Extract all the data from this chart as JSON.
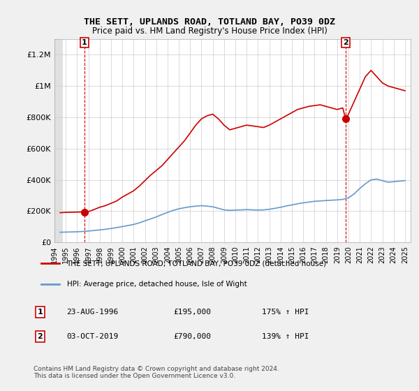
{
  "title": "THE SETT, UPLANDS ROAD, TOTLAND BAY, PO39 0DZ",
  "subtitle": "Price paid vs. HM Land Registry's House Price Index (HPI)",
  "xlabel": "",
  "ylabel": "",
  "ylim": [
    0,
    1300000
  ],
  "xlim_start": 1994.0,
  "xlim_end": 2025.5,
  "yticks": [
    0,
    200000,
    400000,
    600000,
    800000,
    1000000,
    1200000
  ],
  "ytick_labels": [
    "£0",
    "£200K",
    "£400K",
    "£600K",
    "£800K",
    "£1M",
    "£1.2M"
  ],
  "xticks": [
    1994,
    1995,
    1996,
    1997,
    1998,
    1999,
    2000,
    2001,
    2002,
    2003,
    2004,
    2005,
    2006,
    2007,
    2008,
    2009,
    2010,
    2011,
    2012,
    2013,
    2014,
    2015,
    2016,
    2017,
    2018,
    2019,
    2020,
    2021,
    2022,
    2023,
    2024,
    2025
  ],
  "hatch_end": 1994.75,
  "point1_x": 1996.645,
  "point1_y": 195000,
  "point1_label": "1",
  "point1_date": "23-AUG-1996",
  "point1_price": "£195,000",
  "point1_hpi": "175% ↑ HPI",
  "point2_x": 2019.75,
  "point2_y": 790000,
  "point2_label": "2",
  "point2_date": "03-OCT-2019",
  "point2_price": "£790,000",
  "point2_hpi": "139% ↑ HPI",
  "red_line_color": "#cc0000",
  "blue_line_color": "#6699cc",
  "background_color": "#f0f0f0",
  "plot_bg_color": "#ffffff",
  "hatch_color": "#cccccc",
  "grid_color": "#cccccc",
  "legend_line1": "THE SETT, UPLANDS ROAD, TOTLAND BAY, PO39 0DZ (detached house)",
  "legend_line2": "HPI: Average price, detached house, Isle of Wight",
  "footer": "Contains HM Land Registry data © Crown copyright and database right 2024.\nThis data is licensed under the Open Government Licence v3.0.",
  "red_x": [
    1994.5,
    1995.0,
    1995.5,
    1996.0,
    1996.645,
    1997.0,
    1997.5,
    1998.0,
    1998.5,
    1999.0,
    1999.5,
    2000.0,
    2000.5,
    2001.0,
    2001.5,
    2002.0,
    2002.5,
    2003.0,
    2003.5,
    2004.0,
    2004.5,
    2005.0,
    2005.5,
    2006.0,
    2006.5,
    2007.0,
    2007.5,
    2008.0,
    2008.5,
    2009.0,
    2009.5,
    2010.0,
    2010.5,
    2011.0,
    2011.5,
    2012.0,
    2012.5,
    2013.0,
    2013.5,
    2014.0,
    2014.5,
    2015.0,
    2015.5,
    2016.0,
    2016.5,
    2017.0,
    2017.5,
    2018.0,
    2018.5,
    2019.0,
    2019.5,
    2019.75,
    2020.0,
    2020.5,
    2021.0,
    2021.5,
    2022.0,
    2022.5,
    2023.0,
    2023.5,
    2024.0,
    2024.5,
    2025.0
  ],
  "red_y": [
    190000,
    192000,
    193000,
    194000,
    195000,
    197000,
    210000,
    225000,
    235000,
    250000,
    265000,
    290000,
    310000,
    330000,
    360000,
    395000,
    430000,
    460000,
    490000,
    530000,
    570000,
    610000,
    650000,
    700000,
    750000,
    790000,
    810000,
    820000,
    790000,
    750000,
    720000,
    730000,
    740000,
    750000,
    745000,
    740000,
    735000,
    750000,
    770000,
    790000,
    810000,
    830000,
    850000,
    860000,
    870000,
    875000,
    880000,
    870000,
    860000,
    850000,
    860000,
    790000,
    820000,
    900000,
    980000,
    1060000,
    1100000,
    1060000,
    1020000,
    1000000,
    990000,
    980000,
    970000
  ],
  "blue_x": [
    1994.5,
    1995.0,
    1995.5,
    1996.0,
    1996.5,
    1997.0,
    1997.5,
    1998.0,
    1998.5,
    1999.0,
    1999.5,
    2000.0,
    2000.5,
    2001.0,
    2001.5,
    2002.0,
    2002.5,
    2003.0,
    2003.5,
    2004.0,
    2004.5,
    2005.0,
    2005.5,
    2006.0,
    2006.5,
    2007.0,
    2007.5,
    2008.0,
    2008.5,
    2009.0,
    2009.5,
    2010.0,
    2010.5,
    2011.0,
    2011.5,
    2012.0,
    2012.5,
    2013.0,
    2013.5,
    2014.0,
    2014.5,
    2015.0,
    2015.5,
    2016.0,
    2016.5,
    2017.0,
    2017.5,
    2018.0,
    2018.5,
    2019.0,
    2019.5,
    2020.0,
    2020.5,
    2021.0,
    2021.5,
    2022.0,
    2022.5,
    2023.0,
    2023.5,
    2024.0,
    2024.5,
    2025.0
  ],
  "blue_y": [
    65000,
    66000,
    67000,
    68000,
    70000,
    73000,
    76000,
    80000,
    84000,
    89000,
    95000,
    101000,
    108000,
    115000,
    125000,
    138000,
    150000,
    163000,
    178000,
    192000,
    205000,
    215000,
    222000,
    228000,
    232000,
    235000,
    232000,
    228000,
    218000,
    208000,
    205000,
    207000,
    208000,
    210000,
    208000,
    207000,
    208000,
    212000,
    218000,
    225000,
    233000,
    240000,
    247000,
    253000,
    258000,
    263000,
    265000,
    268000,
    270000,
    272000,
    275000,
    285000,
    310000,
    345000,
    375000,
    400000,
    405000,
    395000,
    385000,
    388000,
    392000,
    395000
  ]
}
